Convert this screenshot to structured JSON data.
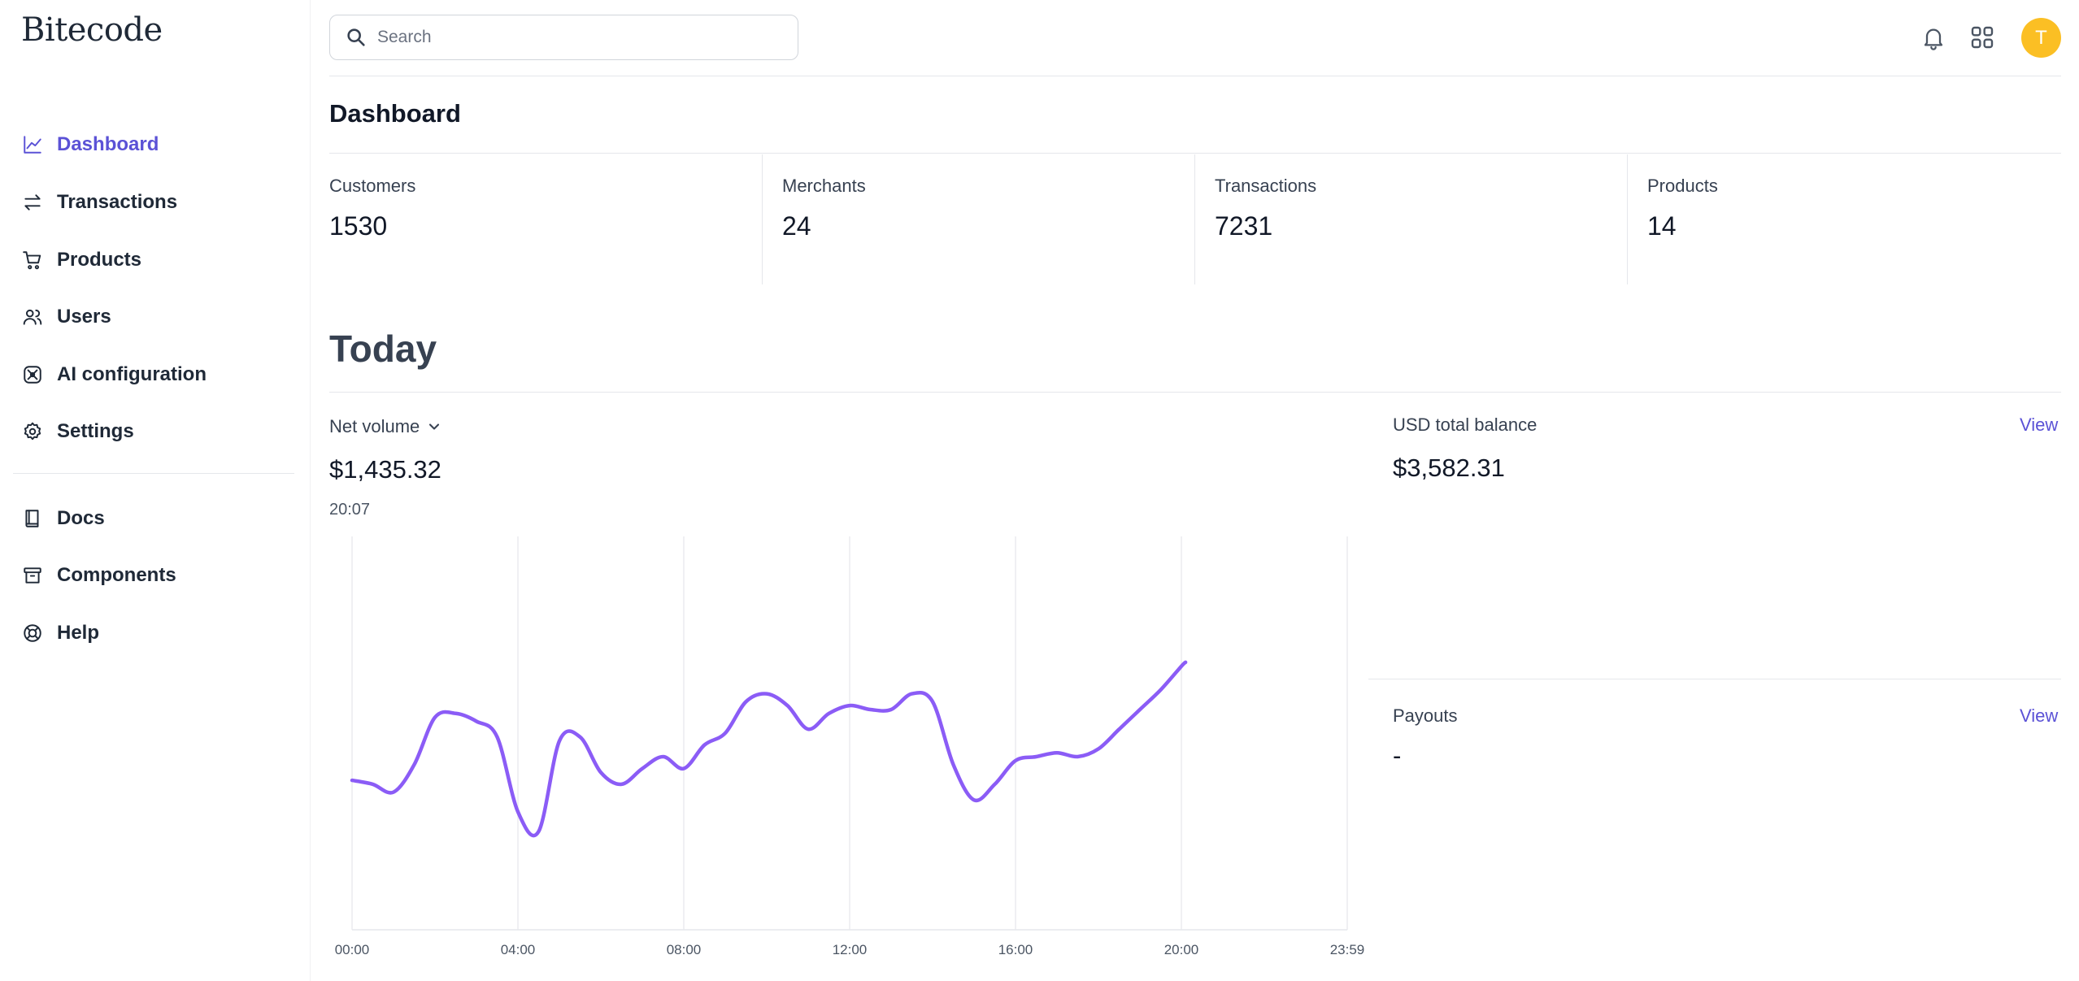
{
  "brand": {
    "logo_text": "Bitecode"
  },
  "sidebar": {
    "items": [
      {
        "label": "Dashboard",
        "icon": "chart-line-icon"
      },
      {
        "label": "Transactions",
        "icon": "arrows-swap-icon"
      },
      {
        "label": "Products",
        "icon": "shopping-cart-icon"
      },
      {
        "label": "Users",
        "icon": "users-icon"
      },
      {
        "label": "AI configuration",
        "icon": "ai-atom-icon"
      },
      {
        "label": "Settings",
        "icon": "gear-icon"
      }
    ],
    "secondary_items": [
      {
        "label": "Docs",
        "icon": "book-icon"
      },
      {
        "label": "Components",
        "icon": "archive-box-icon"
      },
      {
        "label": "Help",
        "icon": "lifebuoy-icon"
      }
    ],
    "active": "Dashboard"
  },
  "header": {
    "search": {
      "placeholder": "Search",
      "value": ""
    },
    "avatar_initial": "T"
  },
  "dashboard": {
    "title": "Dashboard",
    "stats": [
      {
        "label": "Customers",
        "value": "1530"
      },
      {
        "label": "Merchants",
        "value": "24"
      },
      {
        "label": "Transactions",
        "value": "7231"
      },
      {
        "label": "Products",
        "value": "14"
      }
    ]
  },
  "today": {
    "title": "Today",
    "net_volume": {
      "selector_label": "Net volume",
      "value": "$1,435.32",
      "time": "20:07"
    },
    "usd_balance": {
      "label": "USD total balance",
      "value": "$3,582.31",
      "link": "View"
    },
    "payouts": {
      "label": "Payouts",
      "value": "-",
      "link": "View"
    }
  },
  "colors": {
    "accent": "#5b52d6",
    "line": "#8b5cf6",
    "avatar": "#fbbf24"
  },
  "chart_data": {
    "type": "line",
    "title": "",
    "x_ticks": [
      "00:00",
      "04:00",
      "08:00",
      "12:00",
      "16:00",
      "20:00",
      "23:59"
    ],
    "x_range_hours": [
      0,
      24
    ],
    "grid": true,
    "series": [
      {
        "x": [
          0,
          0.5,
          1,
          1.5,
          2,
          2.5,
          3,
          3.5,
          4,
          4.5,
          5,
          5.5,
          6,
          6.5,
          7,
          7.5,
          8,
          8.5,
          9,
          9.5,
          10,
          10.5,
          11,
          11.5,
          12,
          12.5,
          13,
          13.5,
          14,
          14.5,
          15,
          15.5,
          16,
          16.5,
          17,
          17.5,
          18,
          18.5,
          19,
          19.5,
          20,
          20.1
        ],
        "y": [
          38,
          37,
          35,
          42,
          54,
          55,
          53,
          49,
          30,
          25,
          48,
          49,
          40,
          37,
          41,
          44,
          41,
          47,
          50,
          58,
          60,
          57,
          51,
          55,
          57,
          56,
          56,
          60,
          58,
          42,
          33,
          37,
          43,
          44,
          45,
          44,
          46,
          51,
          56,
          61,
          67,
          68
        ]
      }
    ],
    "ylim": [
      0,
      100
    ]
  }
}
